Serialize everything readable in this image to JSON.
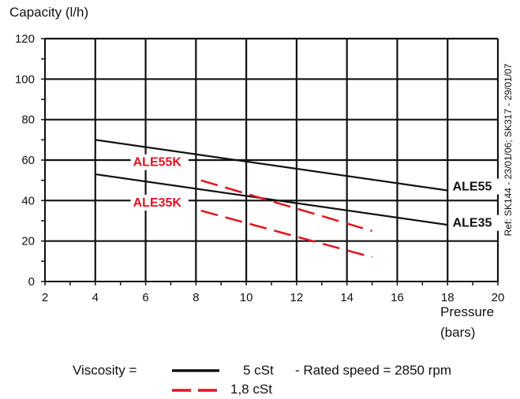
{
  "chart_data": {
    "type": "line",
    "ylabel": "Capacity (l/h)",
    "xlabel_lines": [
      "Pressure",
      "(bars)"
    ],
    "xlim": [
      2,
      20
    ],
    "ylim": [
      0,
      120
    ],
    "x_ticks": [
      2,
      4,
      6,
      8,
      10,
      12,
      14,
      16,
      18,
      20
    ],
    "y_ticks": [
      0,
      20,
      40,
      60,
      80,
      100,
      120
    ],
    "grid": true,
    "series": [
      {
        "name": "ALE55",
        "style": "solid",
        "color": "#111111",
        "x": [
          4,
          18
        ],
        "y": [
          70,
          45
        ]
      },
      {
        "name": "ALE35",
        "style": "solid",
        "color": "#111111",
        "x": [
          4,
          18
        ],
        "y": [
          53,
          28
        ]
      },
      {
        "name": "ALE55K",
        "style": "dashed",
        "color": "#e0141e",
        "x": [
          8.2,
          15
        ],
        "y": [
          50,
          25
        ]
      },
      {
        "name": "ALE35K",
        "style": "dashed",
        "color": "#e0141e",
        "x": [
          8.2,
          15
        ],
        "y": [
          35,
          12
        ]
      }
    ],
    "series_labels": [
      {
        "text": "ALE55",
        "color": "#111111",
        "x": 18.2,
        "y": 45
      },
      {
        "text": "ALE35",
        "color": "#111111",
        "x": 18.2,
        "y": 27
      },
      {
        "text": "ALE55K",
        "color": "#e0141e",
        "x": 5.5,
        "y": 57
      },
      {
        "text": "ALE35K",
        "color": "#e0141e",
        "x": 5.5,
        "y": 37
      }
    ],
    "legend": {
      "prefix": "Viscosity =",
      "solid_label": "5 cSt",
      "note": "- Rated speed = 2850 rpm",
      "dashed_label": "1,8 cSt",
      "placement": "bottom"
    },
    "reference": "Ref: SK144 - 23/01/06; SK317 - 29/01/07"
  }
}
